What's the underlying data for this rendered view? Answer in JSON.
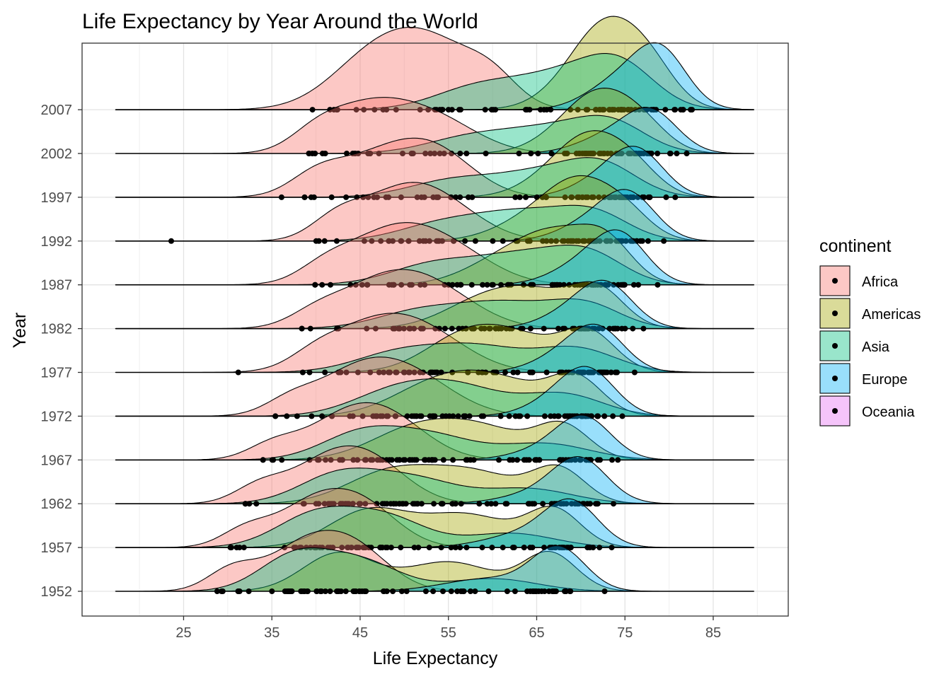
{
  "chart_data": {
    "type": "ridgeline",
    "title": "Life Expectancy by Year Around the World",
    "xlabel": "Life Expectancy",
    "ylabel": "Year",
    "xlim": [
      13.5,
      93.5
    ],
    "x_ticks": [
      25,
      35,
      45,
      55,
      65,
      75,
      85
    ],
    "categories": [
      "1952",
      "1957",
      "1962",
      "1967",
      "1972",
      "1977",
      "1982",
      "1987",
      "1992",
      "1997",
      "2002",
      "2007"
    ],
    "grid": true,
    "legend": {
      "title": "continent",
      "position": "right",
      "entries": [
        {
          "name": "Africa",
          "color": "#F8766D"
        },
        {
          "name": "Americas",
          "color": "#A3A500"
        },
        {
          "name": "Asia",
          "color": "#00BF7D"
        },
        {
          "name": "Europe",
          "color": "#00B0F6"
        },
        {
          "name": "Oceania",
          "color": "#E76BF3"
        }
      ]
    },
    "density_x_range": [
      17.3,
      89.6
    ],
    "series": [
      {
        "name": "Africa",
        "color": "#F8766D",
        "peaks_by_year": [
          [
            [
              38.5,
              4.2,
              1.0
            ],
            [
              44.5,
              4.0,
              0.9
            ],
            [
              30.5,
              2.8,
              0.5
            ]
          ],
          [
            [
              39.5,
              4.2,
              1.0
            ],
            [
              45.5,
              4.0,
              0.9
            ],
            [
              32.0,
              2.8,
              0.4
            ]
          ],
          [
            [
              41.0,
              4.5,
              1.0
            ],
            [
              46.5,
              4.2,
              0.9
            ],
            [
              33.5,
              2.8,
              0.4
            ]
          ],
          [
            [
              43.0,
              4.8,
              1.0
            ],
            [
              48.5,
              4.5,
              0.9
            ],
            [
              35.0,
              2.8,
              0.35
            ]
          ],
          [
            [
              44.5,
              5.0,
              1.0
            ],
            [
              51.0,
              5.0,
              0.85
            ],
            [
              37.0,
              2.8,
              0.3
            ]
          ],
          [
            [
              46.0,
              5.0,
              1.0
            ],
            [
              52.5,
              5.0,
              0.85
            ],
            [
              40.0,
              3.0,
              0.3
            ]
          ],
          [
            [
              47.0,
              5.0,
              1.0
            ],
            [
              53.5,
              5.0,
              0.85
            ],
            [
              40.0,
              3.0,
              0.3
            ]
          ],
          [
            [
              48.0,
              5.0,
              1.0
            ],
            [
              55.0,
              5.0,
              0.7
            ],
            [
              41.0,
              3.0,
              0.3
            ]
          ],
          [
            [
              49.5,
              4.5,
              1.0
            ],
            [
              55.0,
              4.5,
              0.6
            ],
            [
              42.5,
              3.0,
              0.5
            ]
          ],
          [
            [
              46.5,
              5.0,
              0.85
            ],
            [
              53.5,
              4.5,
              1.0
            ],
            [
              40.0,
              3.0,
              0.4
            ]
          ],
          [
            [
              45.5,
              4.5,
              1.0
            ],
            [
              53.0,
              5.0,
              0.9
            ],
            [
              40.0,
              3.0,
              0.4
            ]
          ],
          [
            [
              46.5,
              5.0,
              0.85
            ],
            [
              53.5,
              5.0,
              1.0
            ],
            [
              60.0,
              3.0,
              0.4
            ]
          ]
        ]
      },
      {
        "name": "Americas",
        "color": "#A3A500",
        "peaks_by_year": [
          [
            [
              42.5,
              4.0,
              0.9
            ],
            [
              55.0,
              5.0,
              0.7
            ],
            [
              66.5,
              3.0,
              0.9
            ]
          ],
          [
            [
              46.0,
              4.5,
              0.9
            ],
            [
              57.0,
              5.0,
              0.8
            ],
            [
              67.0,
              3.0,
              0.9
            ]
          ],
          [
            [
              48.5,
              5.0,
              0.85
            ],
            [
              58.0,
              5.0,
              0.8
            ],
            [
              67.5,
              3.0,
              0.9
            ]
          ],
          [
            [
              51.0,
              5.0,
              0.8
            ],
            [
              59.0,
              5.0,
              0.8
            ],
            [
              68.0,
              3.0,
              0.9
            ]
          ],
          [
            [
              53.5,
              5.0,
              0.75
            ],
            [
              61.0,
              5.0,
              0.8
            ],
            [
              69.5,
              3.0,
              0.9
            ]
          ],
          [
            [
              56.5,
              4.5,
              0.75
            ],
            [
              63.0,
              5.0,
              0.8
            ],
            [
              71.0,
              3.0,
              0.9
            ]
          ],
          [
            [
              58.5,
              4.5,
              0.6
            ],
            [
              65.0,
              4.5,
              0.8
            ],
            [
              72.0,
              3.0,
              0.9
            ]
          ],
          [
            [
              61.5,
              4.5,
              0.55
            ],
            [
              67.5,
              4.0,
              0.9
            ],
            [
              73.0,
              3.0,
              0.8
            ]
          ],
          [
            [
              65.5,
              4.5,
              0.6
            ],
            [
              70.0,
              3.5,
              1.0
            ],
            [
              75.0,
              3.0,
              0.6
            ]
          ],
          [
            [
              68.0,
              4.0,
              0.6
            ],
            [
              71.5,
              3.5,
              1.0
            ],
            [
              76.0,
              3.0,
              0.6
            ]
          ],
          [
            [
              69.5,
              4.0,
              0.6
            ],
            [
              72.5,
              3.5,
              1.0
            ],
            [
              77.0,
              3.0,
              0.6
            ]
          ],
          [
            [
              70.5,
              4.0,
              0.6
            ],
            [
              73.5,
              3.5,
              1.0
            ],
            [
              78.0,
              3.0,
              0.6
            ]
          ]
        ]
      },
      {
        "name": "Asia",
        "color": "#00BF7D",
        "peaks_by_year": [
          [
            [
              37.5,
              4.0,
              0.8
            ],
            [
              45.0,
              4.5,
              0.7
            ],
            [
              60.0,
              5.0,
              0.3
            ]
          ],
          [
            [
              40.0,
              4.5,
              0.8
            ],
            [
              48.0,
              4.5,
              0.7
            ],
            [
              62.0,
              5.0,
              0.35
            ]
          ],
          [
            [
              42.5,
              4.5,
              0.75
            ],
            [
              51.0,
              5.0,
              0.65
            ],
            [
              64.0,
              5.0,
              0.4
            ]
          ],
          [
            [
              45.0,
              4.5,
              0.7
            ],
            [
              53.0,
              5.0,
              0.65
            ],
            [
              66.0,
              5.0,
              0.45
            ]
          ],
          [
            [
              49.0,
              5.0,
              0.6
            ],
            [
              56.5,
              5.0,
              0.65
            ],
            [
              68.0,
              4.5,
              0.55
            ]
          ],
          [
            [
              49.5,
              5.0,
              0.5
            ],
            [
              58.5,
              5.0,
              0.6
            ],
            [
              69.5,
              4.5,
              0.6
            ]
          ],
          [
            [
              52.0,
              5.0,
              0.45
            ],
            [
              61.5,
              5.0,
              0.6
            ],
            [
              70.5,
              4.0,
              0.6
            ]
          ],
          [
            [
              53.5,
              5.0,
              0.45
            ],
            [
              63.5,
              5.0,
              0.6
            ],
            [
              71.0,
              4.0,
              0.6
            ]
          ],
          [
            [
              54.5,
              5.0,
              0.4
            ],
            [
              63.5,
              5.0,
              0.6
            ],
            [
              71.5,
              4.0,
              0.6
            ]
          ],
          [
            [
              55.5,
              5.0,
              0.4
            ],
            [
              65.5,
              5.0,
              0.55
            ],
            [
              72.5,
              4.0,
              0.7
            ]
          ],
          [
            [
              57.5,
              5.0,
              0.4
            ],
            [
              66.5,
              5.0,
              0.55
            ],
            [
              73.5,
              4.0,
              0.7
            ]
          ],
          [
            [
              58.5,
              5.0,
              0.4
            ],
            [
              68.0,
              5.0,
              0.55
            ],
            [
              74.5,
              4.0,
              0.7
            ]
          ]
        ]
      },
      {
        "name": "Europe",
        "color": "#00B0F6",
        "peaks_by_year": [
          [
            [
              59.5,
              5.0,
              0.3
            ],
            [
              67.5,
              3.0,
              1.0
            ]
          ],
          [
            [
              64.0,
              4.5,
              0.35
            ],
            [
              69.0,
              3.0,
              1.0
            ]
          ],
          [
            [
              66.5,
              4.5,
              0.35
            ],
            [
              70.0,
              3.0,
              1.0
            ]
          ],
          [
            [
              67.0,
              4.0,
              0.35
            ],
            [
              70.5,
              3.0,
              1.0
            ]
          ],
          [
            [
              67.5,
              3.5,
              0.4
            ],
            [
              71.0,
              3.0,
              1.0
            ]
          ],
          [
            [
              68.0,
              3.5,
              0.4
            ],
            [
              72.0,
              3.0,
              1.0
            ]
          ],
          [
            [
              69.0,
              3.5,
              0.4
            ],
            [
              73.0,
              3.0,
              1.0
            ]
          ],
          [
            [
              70.0,
              3.5,
              0.4
            ],
            [
              74.5,
              3.0,
              1.0
            ]
          ],
          [
            [
              71.0,
              3.5,
              0.4
            ],
            [
              75.5,
              3.0,
              1.0
            ]
          ],
          [
            [
              72.5,
              3.5,
              0.4
            ],
            [
              76.5,
              3.0,
              1.0
            ]
          ],
          [
            [
              73.0,
              3.5,
              0.4
            ],
            [
              78.0,
              3.0,
              1.0
            ]
          ],
          [
            [
              74.0,
              3.5,
              0.45
            ],
            [
              79.0,
              3.0,
              1.0
            ]
          ]
        ]
      },
      {
        "name": "Oceania",
        "color": "#E76BF3",
        "peaks_by_year": [
          [],
          [],
          [],
          [],
          [],
          [],
          [],
          [],
          [],
          [],
          [],
          []
        ]
      }
    ],
    "ridge_heights_rel": [
      0.98,
      0.95,
      0.93,
      0.92,
      0.95,
      0.95,
      0.95,
      1.0,
      1.05,
      1.07,
      1.05,
      1.5
    ],
    "points": {
      "color": "#000000",
      "ranges_by_year": [
        [
          28.8,
          72.7
        ],
        [
          30.3,
          73.5
        ],
        [
          32.0,
          73.7
        ],
        [
          34.0,
          74.2
        ],
        [
          35.4,
          74.7
        ],
        [
          31.2,
          76.1
        ],
        [
          38.4,
          77.1
        ],
        [
          39.9,
          78.7
        ],
        [
          23.6,
          79.4
        ],
        [
          36.1,
          80.7
        ],
        [
          39.2,
          82.0
        ],
        [
          39.6,
          82.6
        ]
      ]
    }
  }
}
